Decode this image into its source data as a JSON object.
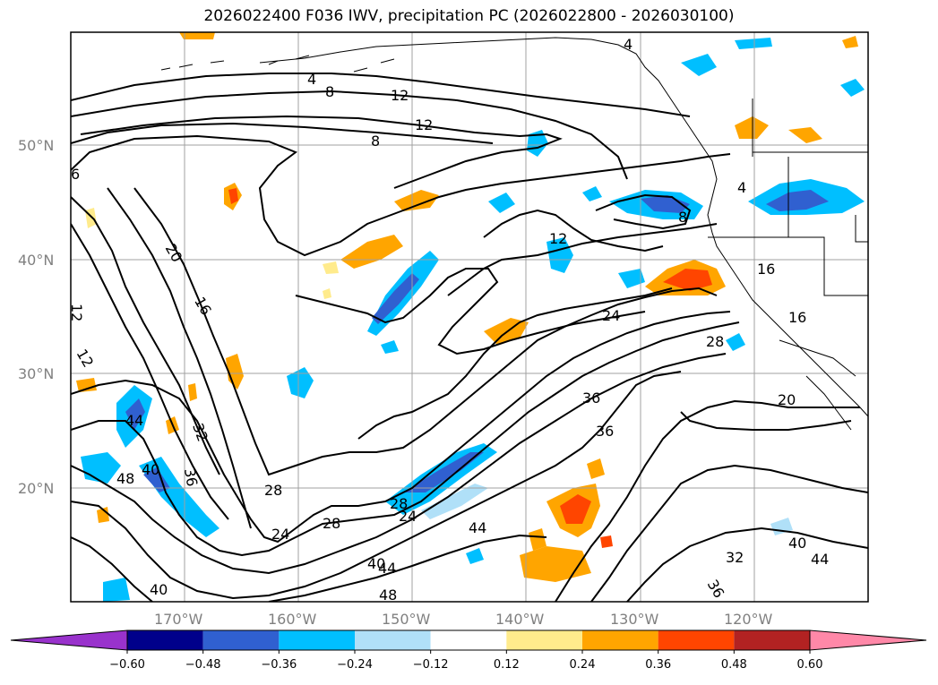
{
  "title": "2026022400 F036 IWV, precipitation PC (2026022800 - 2026030100)",
  "axes": {
    "lat_labels": [
      "50°N",
      "40°N",
      "30°N",
      "20°N"
    ],
    "lon_labels": [
      "170°W",
      "160°W",
      "150°W",
      "140°W",
      "130°W",
      "120°W"
    ],
    "grid_color": "#a0a0a0",
    "tick_color": "#808080"
  },
  "iwv_contour_labels": [
    "4",
    "8",
    "12",
    "12",
    "8",
    "4",
    "12",
    "20",
    "16",
    "8",
    "4",
    "16",
    "16",
    "24",
    "28",
    "12",
    "12",
    "36",
    "36",
    "20",
    "32",
    "36",
    "44",
    "48",
    "40",
    "28",
    "24",
    "28",
    "28",
    "24",
    "40",
    "44",
    "44",
    "48",
    "40",
    "32",
    "40",
    "44",
    "36",
    "6"
  ],
  "precip_pc_colorbar": {
    "colors": [
      "#9932cc",
      "#00008b",
      "#3060d0",
      "#00bfff",
      "#b0e0f8",
      "#ffffff",
      "#ffeb8c",
      "#ffa500",
      "#ff4500",
      "#b22222",
      "#ff88a8"
    ],
    "tick_labels": [
      "−0.60",
      "−0.48",
      "−0.36",
      "−0.24",
      "−0.12",
      "0.12",
      "0.24",
      "0.36",
      "0.48",
      "0.60"
    ]
  }
}
